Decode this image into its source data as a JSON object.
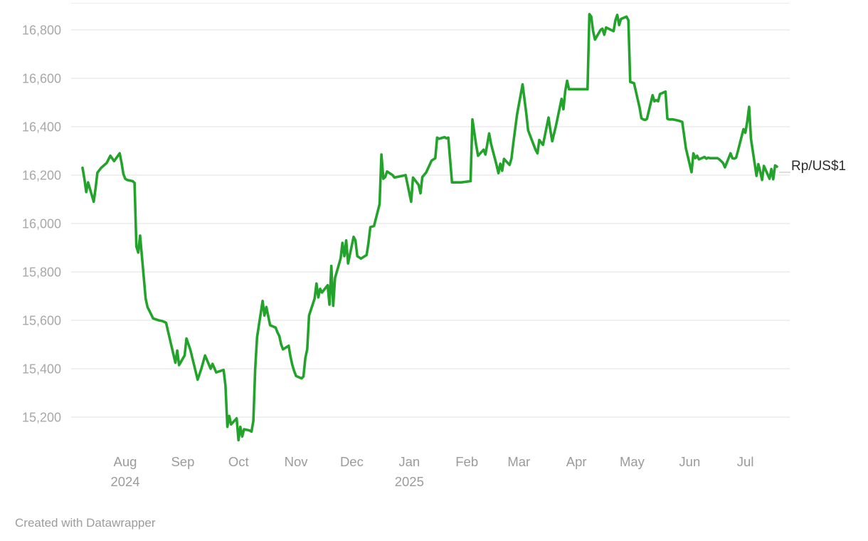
{
  "footer": {
    "attribution": "Created with Datawrapper"
  },
  "colors": {
    "line": "#23a32b",
    "grid": "#e6e6e6",
    "top_border": "#ececec",
    "y_tick_text": "#a8a8a8",
    "x_tick_text": "#9b9b9b",
    "label_text": "#2d2d2d",
    "connector": "#dcdcdc",
    "background": "#ffffff"
  },
  "chart_data": {
    "type": "line",
    "title": "",
    "unit_label": "Rp/US$1",
    "ylabel": "",
    "xlabel": "",
    "grid": true,
    "legend_position": "line-end-right",
    "y_axis": {
      "min": 15100,
      "max": 16906,
      "ticks": [
        16800,
        16600,
        16400,
        16200,
        16000,
        15800,
        15600,
        15400,
        15200
      ],
      "tick_format": "thousands-comma"
    },
    "x_axis": {
      "start": "2024-07-09",
      "end": "2025-07-18",
      "months": [
        {
          "label": "Aug",
          "date": "2024-08-01",
          "year": "2024"
        },
        {
          "label": "Sep",
          "date": "2024-09-01"
        },
        {
          "label": "Oct",
          "date": "2024-10-01"
        },
        {
          "label": "Nov",
          "date": "2024-11-01"
        },
        {
          "label": "Dec",
          "date": "2024-12-01"
        },
        {
          "label": "Jan",
          "date": "2025-01-01",
          "year": "2025"
        },
        {
          "label": "Feb",
          "date": "2025-02-01"
        },
        {
          "label": "Mar",
          "date": "2025-03-01"
        },
        {
          "label": "Apr",
          "date": "2025-04-01"
        },
        {
          "label": "May",
          "date": "2025-05-01"
        },
        {
          "label": "Jun",
          "date": "2025-06-01"
        },
        {
          "label": "Jul",
          "date": "2025-07-01"
        }
      ]
    },
    "series": [
      {
        "name": "Rp/US$1",
        "points": [
          [
            "2024-07-09",
            16230
          ],
          [
            "2024-07-10",
            16185
          ],
          [
            "2024-07-11",
            16130
          ],
          [
            "2024-07-12",
            16170
          ],
          [
            "2024-07-15",
            16090
          ],
          [
            "2024-07-16",
            16145
          ],
          [
            "2024-07-17",
            16210
          ],
          [
            "2024-07-19",
            16230
          ],
          [
            "2024-07-22",
            16250
          ],
          [
            "2024-07-24",
            16280
          ],
          [
            "2024-07-26",
            16258
          ],
          [
            "2024-07-29",
            16290
          ],
          [
            "2024-07-30",
            16252
          ],
          [
            "2024-07-31",
            16205
          ],
          [
            "2024-08-01",
            16185
          ],
          [
            "2024-08-02",
            16180
          ],
          [
            "2024-08-05",
            16175
          ],
          [
            "2024-08-06",
            16168
          ],
          [
            "2024-08-07",
            15905
          ],
          [
            "2024-08-08",
            15880
          ],
          [
            "2024-08-09",
            15950
          ],
          [
            "2024-08-12",
            15690
          ],
          [
            "2024-08-13",
            15655
          ],
          [
            "2024-08-14",
            15640
          ],
          [
            "2024-08-16",
            15608
          ],
          [
            "2024-08-19",
            15600
          ],
          [
            "2024-08-21",
            15597
          ],
          [
            "2024-08-23",
            15590
          ],
          [
            "2024-08-26",
            15490
          ],
          [
            "2024-08-28",
            15425
          ],
          [
            "2024-08-29",
            15475
          ],
          [
            "2024-08-30",
            15415
          ],
          [
            "2024-09-02",
            15455
          ],
          [
            "2024-09-03",
            15525
          ],
          [
            "2024-09-05",
            15480
          ],
          [
            "2024-09-09",
            15355
          ],
          [
            "2024-09-11",
            15400
          ],
          [
            "2024-09-13",
            15455
          ],
          [
            "2024-09-16",
            15400
          ],
          [
            "2024-09-17",
            15420
          ],
          [
            "2024-09-19",
            15385
          ],
          [
            "2024-09-23",
            15395
          ],
          [
            "2024-09-24",
            15330
          ],
          [
            "2024-09-25",
            15160
          ],
          [
            "2024-09-26",
            15205
          ],
          [
            "2024-09-27",
            15170
          ],
          [
            "2024-09-30",
            15195
          ],
          [
            "2024-10-01",
            15105
          ],
          [
            "2024-10-02",
            15160
          ],
          [
            "2024-10-03",
            15120
          ],
          [
            "2024-10-04",
            15150
          ],
          [
            "2024-10-07",
            15145
          ],
          [
            "2024-10-08",
            15140
          ],
          [
            "2024-10-09",
            15185
          ],
          [
            "2024-10-10",
            15400
          ],
          [
            "2024-10-11",
            15530
          ],
          [
            "2024-10-14",
            15680
          ],
          [
            "2024-10-15",
            15620
          ],
          [
            "2024-10-16",
            15655
          ],
          [
            "2024-10-18",
            15580
          ],
          [
            "2024-10-21",
            15570
          ],
          [
            "2024-10-22",
            15550
          ],
          [
            "2024-10-23",
            15535
          ],
          [
            "2024-10-24",
            15500
          ],
          [
            "2024-10-25",
            15480
          ],
          [
            "2024-10-28",
            15495
          ],
          [
            "2024-10-29",
            15450
          ],
          [
            "2024-10-30",
            15415
          ],
          [
            "2024-10-31",
            15390
          ],
          [
            "2024-11-01",
            15370
          ],
          [
            "2024-11-04",
            15360
          ],
          [
            "2024-11-05",
            15368
          ],
          [
            "2024-11-06",
            15445
          ],
          [
            "2024-11-07",
            15480
          ],
          [
            "2024-11-08",
            15620
          ],
          [
            "2024-11-11",
            15690
          ],
          [
            "2024-11-12",
            15752
          ],
          [
            "2024-11-13",
            15695
          ],
          [
            "2024-11-14",
            15730
          ],
          [
            "2024-11-15",
            15715
          ],
          [
            "2024-11-18",
            15745
          ],
          [
            "2024-11-19",
            15665
          ],
          [
            "2024-11-20",
            15825
          ],
          [
            "2024-11-21",
            15660
          ],
          [
            "2024-11-22",
            15775
          ],
          [
            "2024-11-25",
            15855
          ],
          [
            "2024-11-26",
            15920
          ],
          [
            "2024-11-27",
            15865
          ],
          [
            "2024-11-28",
            15930
          ],
          [
            "2024-11-29",
            15835
          ],
          [
            "2024-12-02",
            15945
          ],
          [
            "2024-12-03",
            15930
          ],
          [
            "2024-12-04",
            15865
          ],
          [
            "2024-12-06",
            15855
          ],
          [
            "2024-12-09",
            15870
          ],
          [
            "2024-12-10",
            15920
          ],
          [
            "2024-12-11",
            15985
          ],
          [
            "2024-12-13",
            15990
          ],
          [
            "2024-12-16",
            16080
          ],
          [
            "2024-12-17",
            16285
          ],
          [
            "2024-12-18",
            16185
          ],
          [
            "2024-12-19",
            16192
          ],
          [
            "2024-12-20",
            16215
          ],
          [
            "2024-12-23",
            16200
          ],
          [
            "2024-12-24",
            16190
          ],
          [
            "2024-12-27",
            16195
          ],
          [
            "2024-12-30",
            16200
          ],
          [
            "2025-01-02",
            16090
          ],
          [
            "2025-01-03",
            16190
          ],
          [
            "2025-01-06",
            16160
          ],
          [
            "2025-01-07",
            16125
          ],
          [
            "2025-01-08",
            16192
          ],
          [
            "2025-01-10",
            16210
          ],
          [
            "2025-01-13",
            16260
          ],
          [
            "2025-01-15",
            16270
          ],
          [
            "2025-01-16",
            16355
          ],
          [
            "2025-01-17",
            16350
          ],
          [
            "2025-01-20",
            16357
          ],
          [
            "2025-01-21",
            16352
          ],
          [
            "2025-01-22",
            16355
          ],
          [
            "2025-01-24",
            16170
          ],
          [
            "2025-01-27",
            16170
          ],
          [
            "2025-01-29",
            16170
          ],
          [
            "2025-01-31",
            16172
          ],
          [
            "2025-02-03",
            16175
          ],
          [
            "2025-02-04",
            16430
          ],
          [
            "2025-02-06",
            16325
          ],
          [
            "2025-02-07",
            16280
          ],
          [
            "2025-02-10",
            16305
          ],
          [
            "2025-02-11",
            16285
          ],
          [
            "2025-02-13",
            16372
          ],
          [
            "2025-02-14",
            16330
          ],
          [
            "2025-02-17",
            16242
          ],
          [
            "2025-02-18",
            16208
          ],
          [
            "2025-02-19",
            16247
          ],
          [
            "2025-02-20",
            16218
          ],
          [
            "2025-02-21",
            16267
          ],
          [
            "2025-02-24",
            16242
          ],
          [
            "2025-02-25",
            16267
          ],
          [
            "2025-02-26",
            16330
          ],
          [
            "2025-02-28",
            16450
          ],
          [
            "2025-03-03",
            16575
          ],
          [
            "2025-03-05",
            16455
          ],
          [
            "2025-03-06",
            16385
          ],
          [
            "2025-03-10",
            16305
          ],
          [
            "2025-03-11",
            16290
          ],
          [
            "2025-03-12",
            16345
          ],
          [
            "2025-03-14",
            16325
          ],
          [
            "2025-03-17",
            16438
          ],
          [
            "2025-03-18",
            16385
          ],
          [
            "2025-03-19",
            16340
          ],
          [
            "2025-03-21",
            16405
          ],
          [
            "2025-03-24",
            16515
          ],
          [
            "2025-03-25",
            16472
          ],
          [
            "2025-03-26",
            16548
          ],
          [
            "2025-03-27",
            16590
          ],
          [
            "2025-03-28",
            16555
          ],
          [
            "2025-03-31",
            16555
          ],
          [
            "2025-04-02",
            16555
          ],
          [
            "2025-04-04",
            16555
          ],
          [
            "2025-04-07",
            16555
          ],
          [
            "2025-04-08",
            16865
          ],
          [
            "2025-04-09",
            16855
          ],
          [
            "2025-04-10",
            16795
          ],
          [
            "2025-04-11",
            16760
          ],
          [
            "2025-04-14",
            16800
          ],
          [
            "2025-04-15",
            16805
          ],
          [
            "2025-04-16",
            16780
          ],
          [
            "2025-04-17",
            16810
          ],
          [
            "2025-04-21",
            16795
          ],
          [
            "2025-04-22",
            16840
          ],
          [
            "2025-04-23",
            16862
          ],
          [
            "2025-04-24",
            16820
          ],
          [
            "2025-04-25",
            16845
          ],
          [
            "2025-04-28",
            16855
          ],
          [
            "2025-04-29",
            16840
          ],
          [
            "2025-04-30",
            16585
          ],
          [
            "2025-05-02",
            16580
          ],
          [
            "2025-05-05",
            16480
          ],
          [
            "2025-05-06",
            16435
          ],
          [
            "2025-05-07",
            16430
          ],
          [
            "2025-05-08",
            16428
          ],
          [
            "2025-05-09",
            16432
          ],
          [
            "2025-05-12",
            16530
          ],
          [
            "2025-05-13",
            16505
          ],
          [
            "2025-05-14",
            16510
          ],
          [
            "2025-05-15",
            16505
          ],
          [
            "2025-05-16",
            16535
          ],
          [
            "2025-05-19",
            16545
          ],
          [
            "2025-05-20",
            16433
          ],
          [
            "2025-05-21",
            16430
          ],
          [
            "2025-05-23",
            16430
          ],
          [
            "2025-05-26",
            16425
          ],
          [
            "2025-05-28",
            16420
          ],
          [
            "2025-05-30",
            16310
          ],
          [
            "2025-06-02",
            16212
          ],
          [
            "2025-06-03",
            16290
          ],
          [
            "2025-06-04",
            16270
          ],
          [
            "2025-06-05",
            16280
          ],
          [
            "2025-06-06",
            16265
          ],
          [
            "2025-06-09",
            16275
          ],
          [
            "2025-06-10",
            16268
          ],
          [
            "2025-06-11",
            16272
          ],
          [
            "2025-06-12",
            16270
          ],
          [
            "2025-06-16",
            16270
          ],
          [
            "2025-06-17",
            16265
          ],
          [
            "2025-06-19",
            16250
          ],
          [
            "2025-06-20",
            16232
          ],
          [
            "2025-06-23",
            16290
          ],
          [
            "2025-06-24",
            16270
          ],
          [
            "2025-06-25",
            16268
          ],
          [
            "2025-06-26",
            16272
          ],
          [
            "2025-06-27",
            16300
          ],
          [
            "2025-06-30",
            16390
          ],
          [
            "2025-07-01",
            16375
          ],
          [
            "2025-07-02",
            16420
          ],
          [
            "2025-07-03",
            16482
          ],
          [
            "2025-07-04",
            16350
          ],
          [
            "2025-07-07",
            16197
          ],
          [
            "2025-07-08",
            16245
          ],
          [
            "2025-07-09",
            16215
          ],
          [
            "2025-07-10",
            16180
          ],
          [
            "2025-07-11",
            16238
          ],
          [
            "2025-07-14",
            16185
          ],
          [
            "2025-07-15",
            16225
          ],
          [
            "2025-07-16",
            16183
          ],
          [
            "2025-07-17",
            16240
          ],
          [
            "2025-07-18",
            16235
          ]
        ]
      }
    ]
  }
}
